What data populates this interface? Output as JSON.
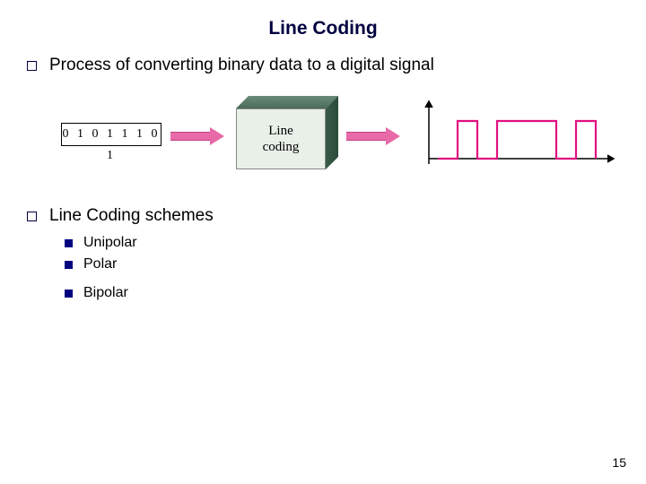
{
  "title": "Line Coding",
  "bullets": {
    "first": "Process of converting binary data to a digital signal",
    "second": "Line Coding schemes"
  },
  "sub_bullets": {
    "a": "Unipolar",
    "b": "Polar",
    "c": "Bipolar"
  },
  "diagram": {
    "binary_label": "0 1 0 1 1 1 0 1",
    "block_line1": "Line",
    "block_line2": "coding",
    "arrow_fill": "#e86aa8",
    "arrow_border": "#c04080",
    "box_front": "#e8f0e8",
    "signal_color": "#e01080",
    "axis_color": "#000000",
    "signal_bits": [
      0,
      1,
      0,
      1,
      1,
      1,
      0,
      1
    ]
  },
  "colors": {
    "title_color": "#000040",
    "bullet_border": "#000040",
    "sub_bullet_fill": "#000080"
  },
  "page_number": "15"
}
